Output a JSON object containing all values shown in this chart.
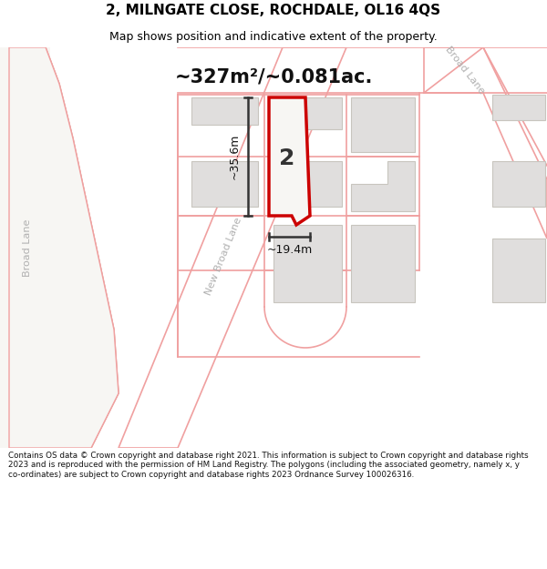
{
  "title_line1": "2, MILNGATE CLOSE, ROCHDALE, OL16 4QS",
  "title_line2": "Map shows position and indicative extent of the property.",
  "area_text": "~327m²/~0.081ac.",
  "dim_height": "~35.6m",
  "dim_width": "~19.4m",
  "plot_number": "2",
  "copyright_text": "Contains OS data © Crown copyright and database right 2021. This information is subject to Crown copyright and database rights 2023 and is reproduced with the permission of HM Land Registry. The polygons (including the associated geometry, namely x, y co-ordinates) are subject to Crown copyright and database rights 2023 Ordnance Survey 100026316.",
  "bg_color": "#ffffff",
  "map_bg": "#f7f6f3",
  "road_color": "#ffffff",
  "building_color": "#e0dedd",
  "building_outline": "#c8c5be",
  "road_outline": "#f0a0a0",
  "plot_outline": "#cc0000",
  "plot_fill": "#f7f6f3",
  "green_area": "#d5e8d0",
  "green_outline": "#c8dfc0",
  "dim_color": "#333333",
  "road_label_color": "#b0b0b0",
  "title_color": "#000000",
  "title_fontsize": 11,
  "subtitle_fontsize": 9,
  "area_fontsize": 15,
  "plot_num_fontsize": 18,
  "dim_fontsize": 9,
  "road_label_fontsize": 8,
  "copy_fontsize": 6.3
}
